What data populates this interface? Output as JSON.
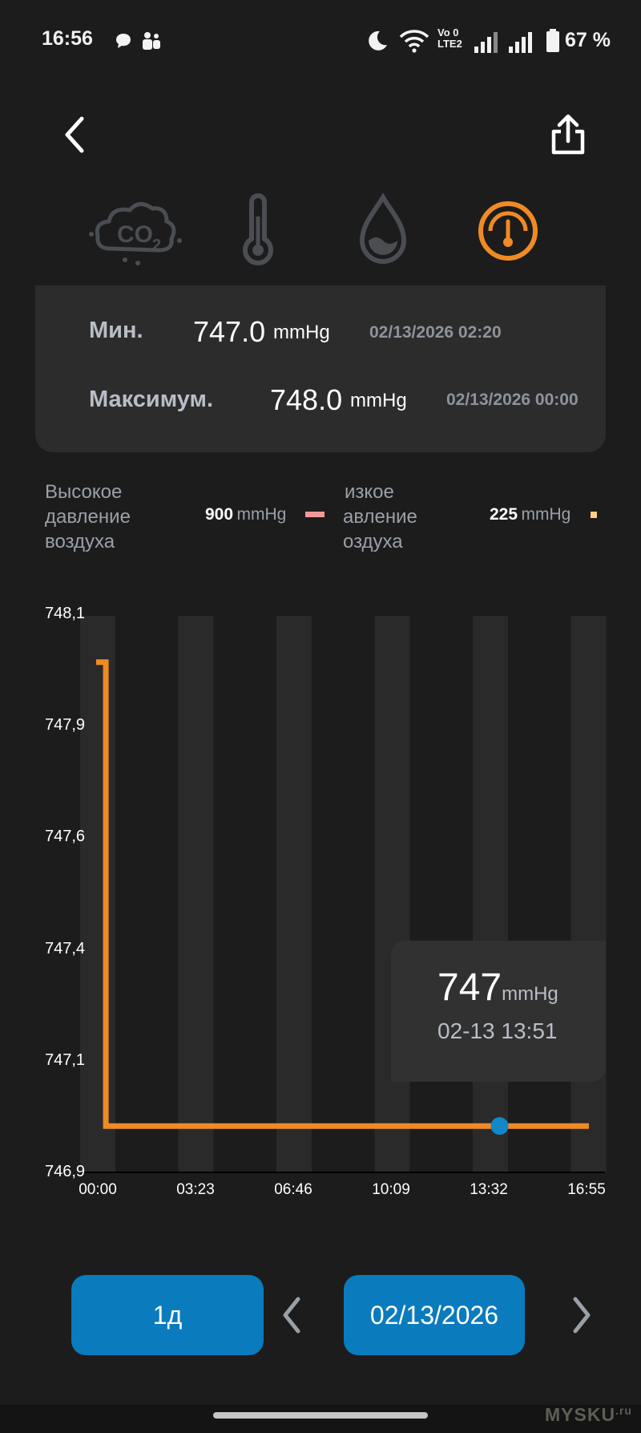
{
  "status_bar": {
    "time": "16:56",
    "battery": "67 %"
  },
  "tabs": [
    {
      "icon": "co2-icon",
      "active": false
    },
    {
      "icon": "thermometer-icon",
      "active": false
    },
    {
      "icon": "humidity-drop-icon",
      "active": false
    },
    {
      "icon": "pressure-gauge-icon",
      "active": true
    }
  ],
  "summary": {
    "min_label": "Мин.",
    "min_value": "747.0",
    "min_unit": "mmHg",
    "min_time": "02/13/2026 02:20",
    "max_label": "Максимум.",
    "max_value": "748.0",
    "max_unit": "mmHg",
    "max_time": "02/13/2026 00:00"
  },
  "legend": {
    "high_line1": "Высокое",
    "high_line2": "давление",
    "high_line3": "воздуха",
    "high_value": "900",
    "high_unit": "mmHg",
    "high_color": "#ef9a9a",
    "low_line1": "изкое",
    "low_line2": "авление",
    "low_line3": "оздуха",
    "low_value": "225",
    "low_unit": "mmHg",
    "low_color": "#ffd180"
  },
  "chart_data": {
    "type": "line",
    "y_ticks": [
      "748,1",
      "747,9",
      "747,6",
      "747,4",
      "747,1",
      "746,9"
    ],
    "x_ticks": [
      "00:00",
      "03:23",
      "06:46",
      "10:09",
      "13:32",
      "16:55"
    ],
    "ylim": [
      746.9,
      748.1
    ],
    "xlim_minutes": [
      0,
      1015
    ],
    "series": [
      {
        "color": "#f08a24",
        "points": [
          {
            "x": "00:00",
            "y": 748.0
          },
          {
            "x": "00:20",
            "y": 748.0
          },
          {
            "x": "00:20",
            "y": 747.0
          },
          {
            "x": "13:51",
            "y": 747.0
          },
          {
            "x": "16:55",
            "y": 747.0
          }
        ]
      }
    ],
    "selected_point": {
      "x": "13:51",
      "y": 747.0,
      "color": "#1288c9"
    }
  },
  "tooltip": {
    "value": "747",
    "unit": "mmHg",
    "time": "02-13 13:51"
  },
  "controls": {
    "range_label": "1д",
    "date_label": "02/13/2026"
  },
  "watermark": "MYSKU",
  "watermark_suffix": ".ru"
}
